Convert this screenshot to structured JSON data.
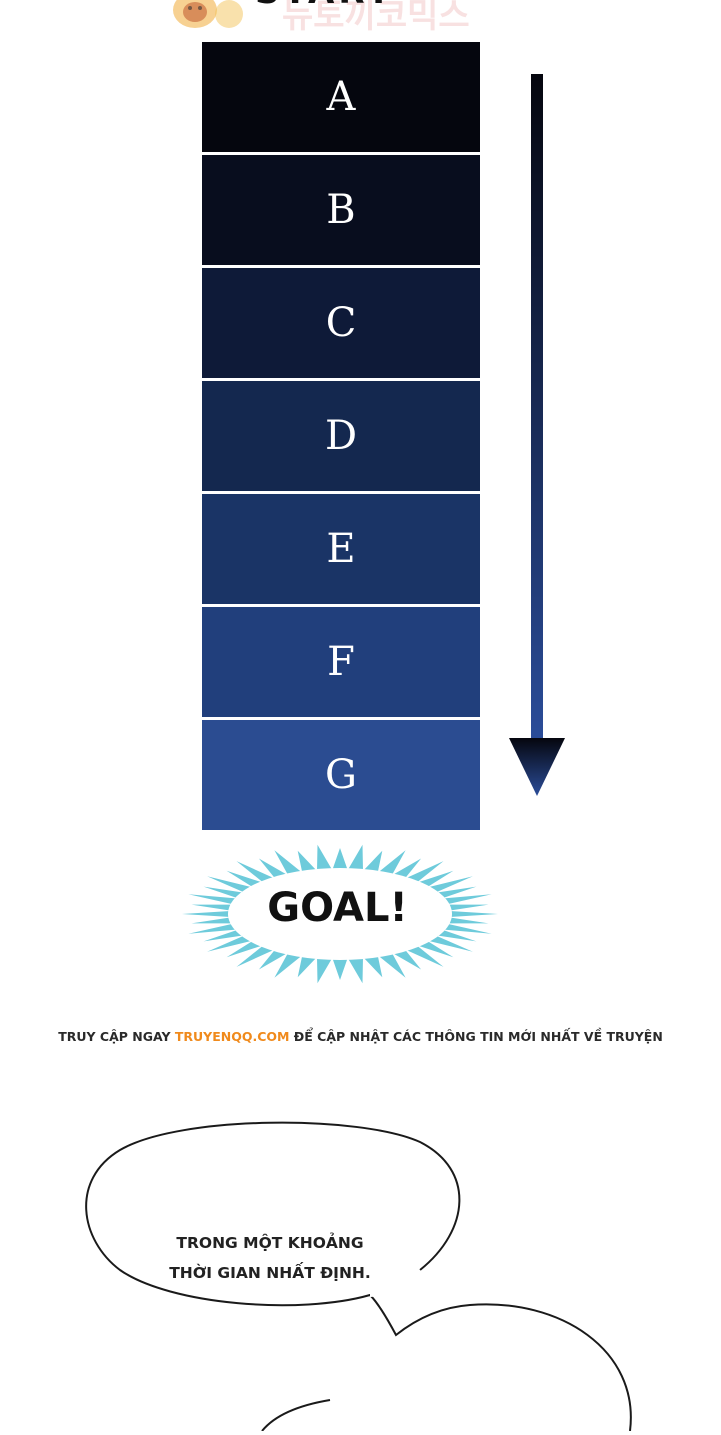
{
  "header": {
    "title": "START",
    "watermark_text": "뉴토끼코믹스"
  },
  "ladder": {
    "steps": [
      {
        "label": "A",
        "color": "#05060e"
      },
      {
        "label": "B",
        "color": "#080d1e"
      },
      {
        "label": "C",
        "color": "#0e1a38"
      },
      {
        "label": "D",
        "color": "#14284f"
      },
      {
        "label": "E",
        "color": "#1a3466"
      },
      {
        "label": "F",
        "color": "#213f7c"
      },
      {
        "label": "G",
        "color": "#2b4c91"
      }
    ],
    "arrow_top_color": "#05060e",
    "arrow_bottom_color": "#2b4d9a"
  },
  "goal": {
    "label": "GOAL!",
    "burst_color": "#6ecbdb"
  },
  "notice": {
    "prefix": "TRUY CẬP NGAY ",
    "site": "TRUYENQQ.COM",
    "suffix": " ĐỂ CẬP NHẬT CÁC THÔNG TIN MỚI NHẤT VỀ TRUYỆN",
    "site_color": "#f08a1c"
  },
  "speech_bubble": {
    "line1": "TRONG MỘT KHOẢNG",
    "line2": "THỜI GIAN NHẤT ĐỊNH."
  }
}
